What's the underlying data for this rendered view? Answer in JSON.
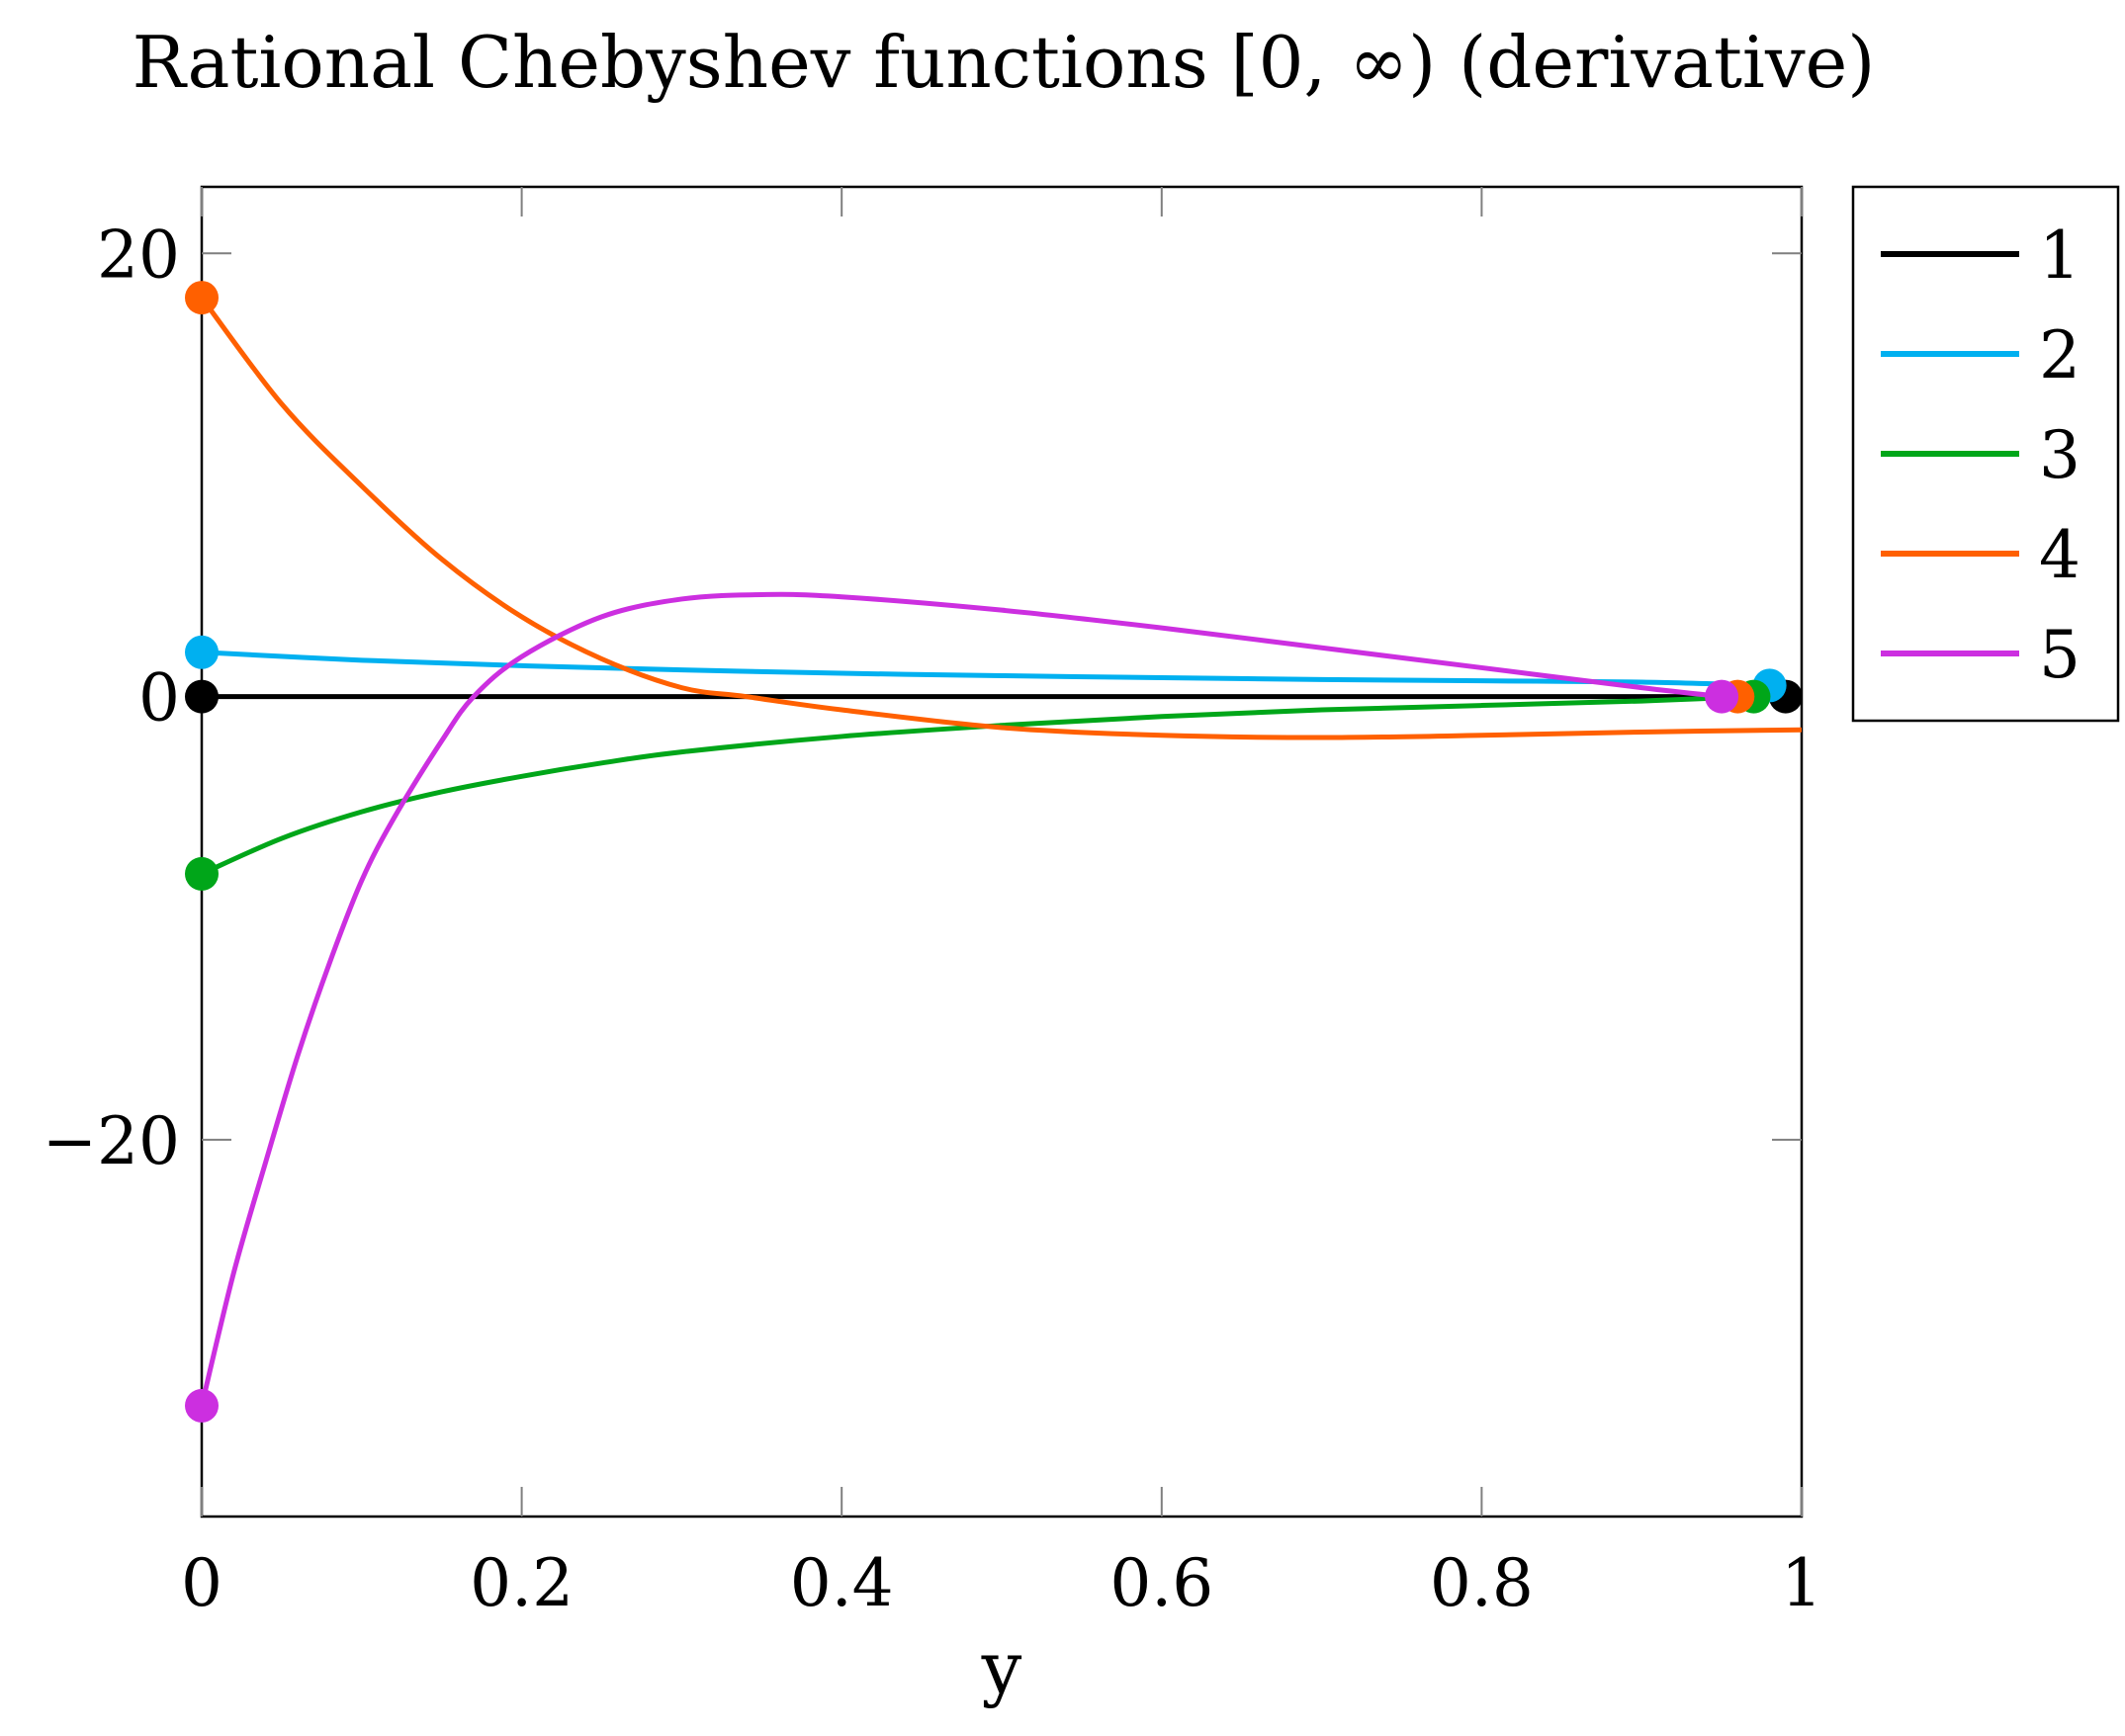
{
  "chart_data": {
    "type": "line",
    "title": "Rational Chebyshev functions [0, ∞) (derivative)",
    "xlabel": "y",
    "ylabel": "",
    "xlim": [
      0,
      1
    ],
    "ylim": [
      -37,
      23
    ],
    "x_ticks": [
      {
        "value": 0,
        "label": "0"
      },
      {
        "value": 0.2,
        "label": "0.2"
      },
      {
        "value": 0.4,
        "label": "0.4"
      },
      {
        "value": 0.6,
        "label": "0.6"
      },
      {
        "value": 0.8,
        "label": "0.8"
      },
      {
        "value": 1,
        "label": "1"
      }
    ],
    "y_ticks": [
      {
        "value": 20,
        "label": "20"
      },
      {
        "value": 0,
        "label": "0"
      },
      {
        "value": -20,
        "label": "−20"
      }
    ],
    "grid": false,
    "legend_position": "outside-right-top",
    "series": [
      {
        "name": "1",
        "color": "#000000",
        "x": [
          0,
          0.1,
          0.2,
          0.3,
          0.4,
          0.5,
          0.6,
          0.7,
          0.8,
          0.9,
          0.99
        ],
        "y": [
          0,
          0,
          0,
          0,
          0,
          0,
          0,
          0,
          0,
          0,
          0
        ],
        "markers": [
          {
            "x": 0,
            "y": 0
          },
          {
            "x": 0.99,
            "y": 0
          }
        ]
      },
      {
        "name": "2",
        "color": "#00B0F0",
        "x": [
          0,
          0.1,
          0.2,
          0.3,
          0.4,
          0.5,
          0.6,
          0.7,
          0.8,
          0.9,
          0.98
        ],
        "y": [
          2,
          1.64,
          1.39,
          1.2,
          1.05,
          0.94,
          0.85,
          0.77,
          0.71,
          0.65,
          0.5
        ],
        "markers": [
          {
            "x": 0,
            "y": 2
          },
          {
            "x": 0.98,
            "y": 0.5
          }
        ]
      },
      {
        "name": "3",
        "color": "#00A619",
        "x": [
          0,
          0.05,
          0.1,
          0.15,
          0.2,
          0.25,
          0.3,
          0.4,
          0.5,
          0.6,
          0.7,
          0.8,
          0.9,
          0.97
        ],
        "y": [
          -8,
          -6.4,
          -5.2,
          -4.3,
          -3.6,
          -3.0,
          -2.5,
          -1.8,
          -1.3,
          -0.9,
          -0.6,
          -0.4,
          -0.2,
          0
        ],
        "markers": [
          {
            "x": 0,
            "y": -8
          },
          {
            "x": 0.97,
            "y": 0
          }
        ]
      },
      {
        "name": "4",
        "color": "#FF6000",
        "x": [
          0,
          0.05,
          0.1,
          0.15,
          0.2,
          0.25,
          0.3,
          0.34,
          0.4,
          0.5,
          0.6,
          0.7,
          0.8,
          0.9,
          1.0
        ],
        "y": [
          18,
          13.2,
          9.5,
          6.2,
          3.6,
          1.7,
          0.4,
          0,
          -0.6,
          -1.4,
          -1.75,
          -1.85,
          -1.75,
          -1.6,
          -1.5
        ],
        "markers": [
          {
            "x": 0,
            "y": 18
          },
          {
            "x": 0.96,
            "y": 0
          }
        ]
      },
      {
        "name": "5",
        "color": "#CC2FE0",
        "x": [
          0,
          0.02,
          0.04,
          0.06,
          0.08,
          0.1,
          0.12,
          0.15,
          0.17,
          0.2,
          0.25,
          0.3,
          0.35,
          0.4,
          0.5,
          0.6,
          0.7,
          0.8,
          0.9,
          0.95
        ],
        "y": [
          -32,
          -26,
          -21,
          -16.2,
          -12,
          -8.3,
          -5.5,
          -2.0,
          0,
          1.8,
          3.6,
          4.4,
          4.6,
          4.5,
          3.9,
          3.1,
          2.2,
          1.3,
          0.4,
          0
        ],
        "markers": [
          {
            "x": 0,
            "y": -32
          },
          {
            "x": 0.95,
            "y": 0
          }
        ]
      }
    ]
  }
}
